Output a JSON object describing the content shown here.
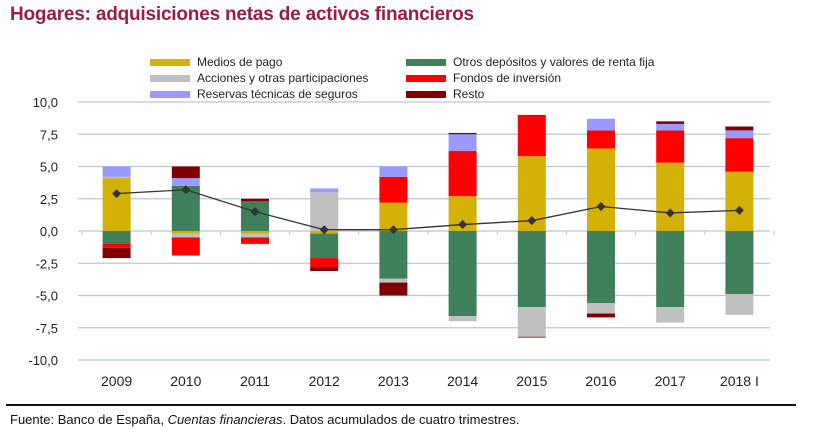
{
  "chart_data": {
    "type": "bar",
    "stacked": true,
    "title": "Hogares: adquisiciones netas de activos financieros",
    "xlabel": "",
    "ylabel": "",
    "ylim": [
      -10,
      10
    ],
    "yticks": [
      10,
      7.5,
      5,
      2.5,
      0,
      -2.5,
      -5,
      -7.5,
      -10
    ],
    "ytick_labels": [
      "10,0",
      "7,5",
      "5,0",
      "2,5",
      "0,0",
      "-2,5",
      "-5,0",
      "-7,5",
      "-10,0"
    ],
    "grid": true,
    "legend_position": "top",
    "categories": [
      "2009",
      "2010",
      "2011",
      "2012",
      "2013",
      "2014",
      "2015",
      "2016",
      "2017",
      "2018 I"
    ],
    "series": [
      {
        "name": "Medios de pago",
        "color": "#d4b106",
        "values": [
          4.1,
          -0.2,
          -0.2,
          -0.2,
          2.2,
          2.7,
          5.8,
          6.4,
          5.3,
          4.6
        ]
      },
      {
        "name": "Otros depósitos y valores de renta fija",
        "color": "#3f7f5a",
        "values": [
          -0.95,
          3.5,
          2.3,
          -1.9,
          -3.7,
          -6.6,
          -5.9,
          -5.6,
          -5.9,
          -4.9
        ]
      },
      {
        "name": "Acciones y otras participaciones",
        "color": "#c0c0c0",
        "values": [
          0.1,
          -0.3,
          -0.3,
          3.0,
          -0.3,
          -0.4,
          -2.3,
          -0.8,
          -1.2,
          -1.6
        ]
      },
      {
        "name": "Fondos de inversión",
        "color": "#ff0000",
        "values": [
          -0.35,
          -1.4,
          -0.5,
          -0.7,
          2.0,
          3.5,
          3.2,
          1.4,
          2.5,
          2.6
        ]
      },
      {
        "name": "Reservas técnicas de seguros",
        "color": "#9999ff",
        "values": [
          0.8,
          0.6,
          0.0,
          0.3,
          0.8,
          1.3,
          0.0,
          0.9,
          0.5,
          0.6
        ]
      },
      {
        "name": "Resto",
        "color": "#800000",
        "values": [
          -0.8,
          0.9,
          0.2,
          -0.3,
          -1.0,
          0.1,
          -0.05,
          -0.3,
          0.2,
          0.3
        ]
      }
    ],
    "line": {
      "name": "Total",
      "color": "#333333",
      "values": [
        2.9,
        3.2,
        1.5,
        0.1,
        0.1,
        0.5,
        0.8,
        1.9,
        1.4,
        1.6
      ]
    }
  },
  "legend": {
    "items": [
      {
        "label": "Medios de pago",
        "color": "#d4b106"
      },
      {
        "label": "Acciones y otras participaciones",
        "color": "#c0c0c0"
      },
      {
        "label": "Reservas técnicas de seguros",
        "color": "#9999ff"
      },
      {
        "label": "Otros depósitos y valores de renta fija",
        "color": "#3f7f5a"
      },
      {
        "label": "Fondos de inversión",
        "color": "#ff0000"
      },
      {
        "label": "Resto",
        "color": "#800000"
      }
    ]
  },
  "footer": {
    "prefix": "Fuente: Banco de España, ",
    "italic": "Cuentas financieras",
    "suffix": ". Datos acumulados de cuatro trimestres."
  }
}
